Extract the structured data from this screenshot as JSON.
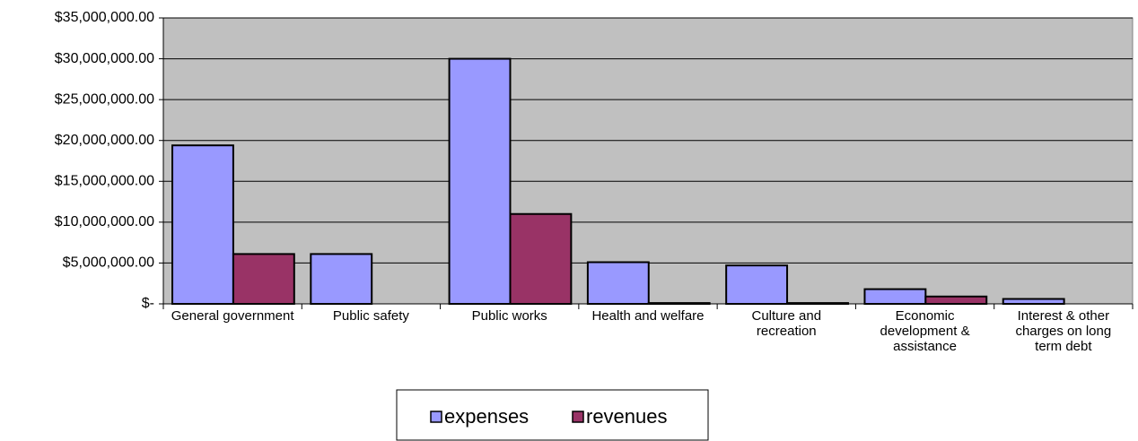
{
  "chart_data": {
    "type": "bar",
    "categories": [
      "General government",
      "Public safety",
      "Public works",
      "Health and welfare",
      "Culture and recreation",
      "Economic development & assistance",
      "Interest & other charges on long term debt"
    ],
    "series": [
      {
        "name": "expenses",
        "color": "#9999ff",
        "values": [
          19400000,
          6100000,
          30000000,
          5100000,
          4700000,
          1800000,
          600000
        ]
      },
      {
        "name": "revenues",
        "color": "#993366",
        "values": [
          6100000,
          0,
          11000000,
          100000,
          100000,
          900000,
          0
        ]
      }
    ],
    "ylim": [
      0,
      35000000
    ],
    "yticks": [
      {
        "value": 0,
        "label": "$-"
      },
      {
        "value": 5000000,
        "label": "$5,000,000.00"
      },
      {
        "value": 10000000,
        "label": "$10,000,000.00"
      },
      {
        "value": 15000000,
        "label": "$15,000,000.00"
      },
      {
        "value": 20000000,
        "label": "$20,000,000.00"
      },
      {
        "value": 25000000,
        "label": "$25,000,000.00"
      },
      {
        "value": 30000000,
        "label": "$30,000,000.00"
      },
      {
        "value": 35000000,
        "label": "$35,000,000.00"
      }
    ],
    "grid": true,
    "plot_background": "#c0c0c0",
    "legend": "bottom"
  }
}
